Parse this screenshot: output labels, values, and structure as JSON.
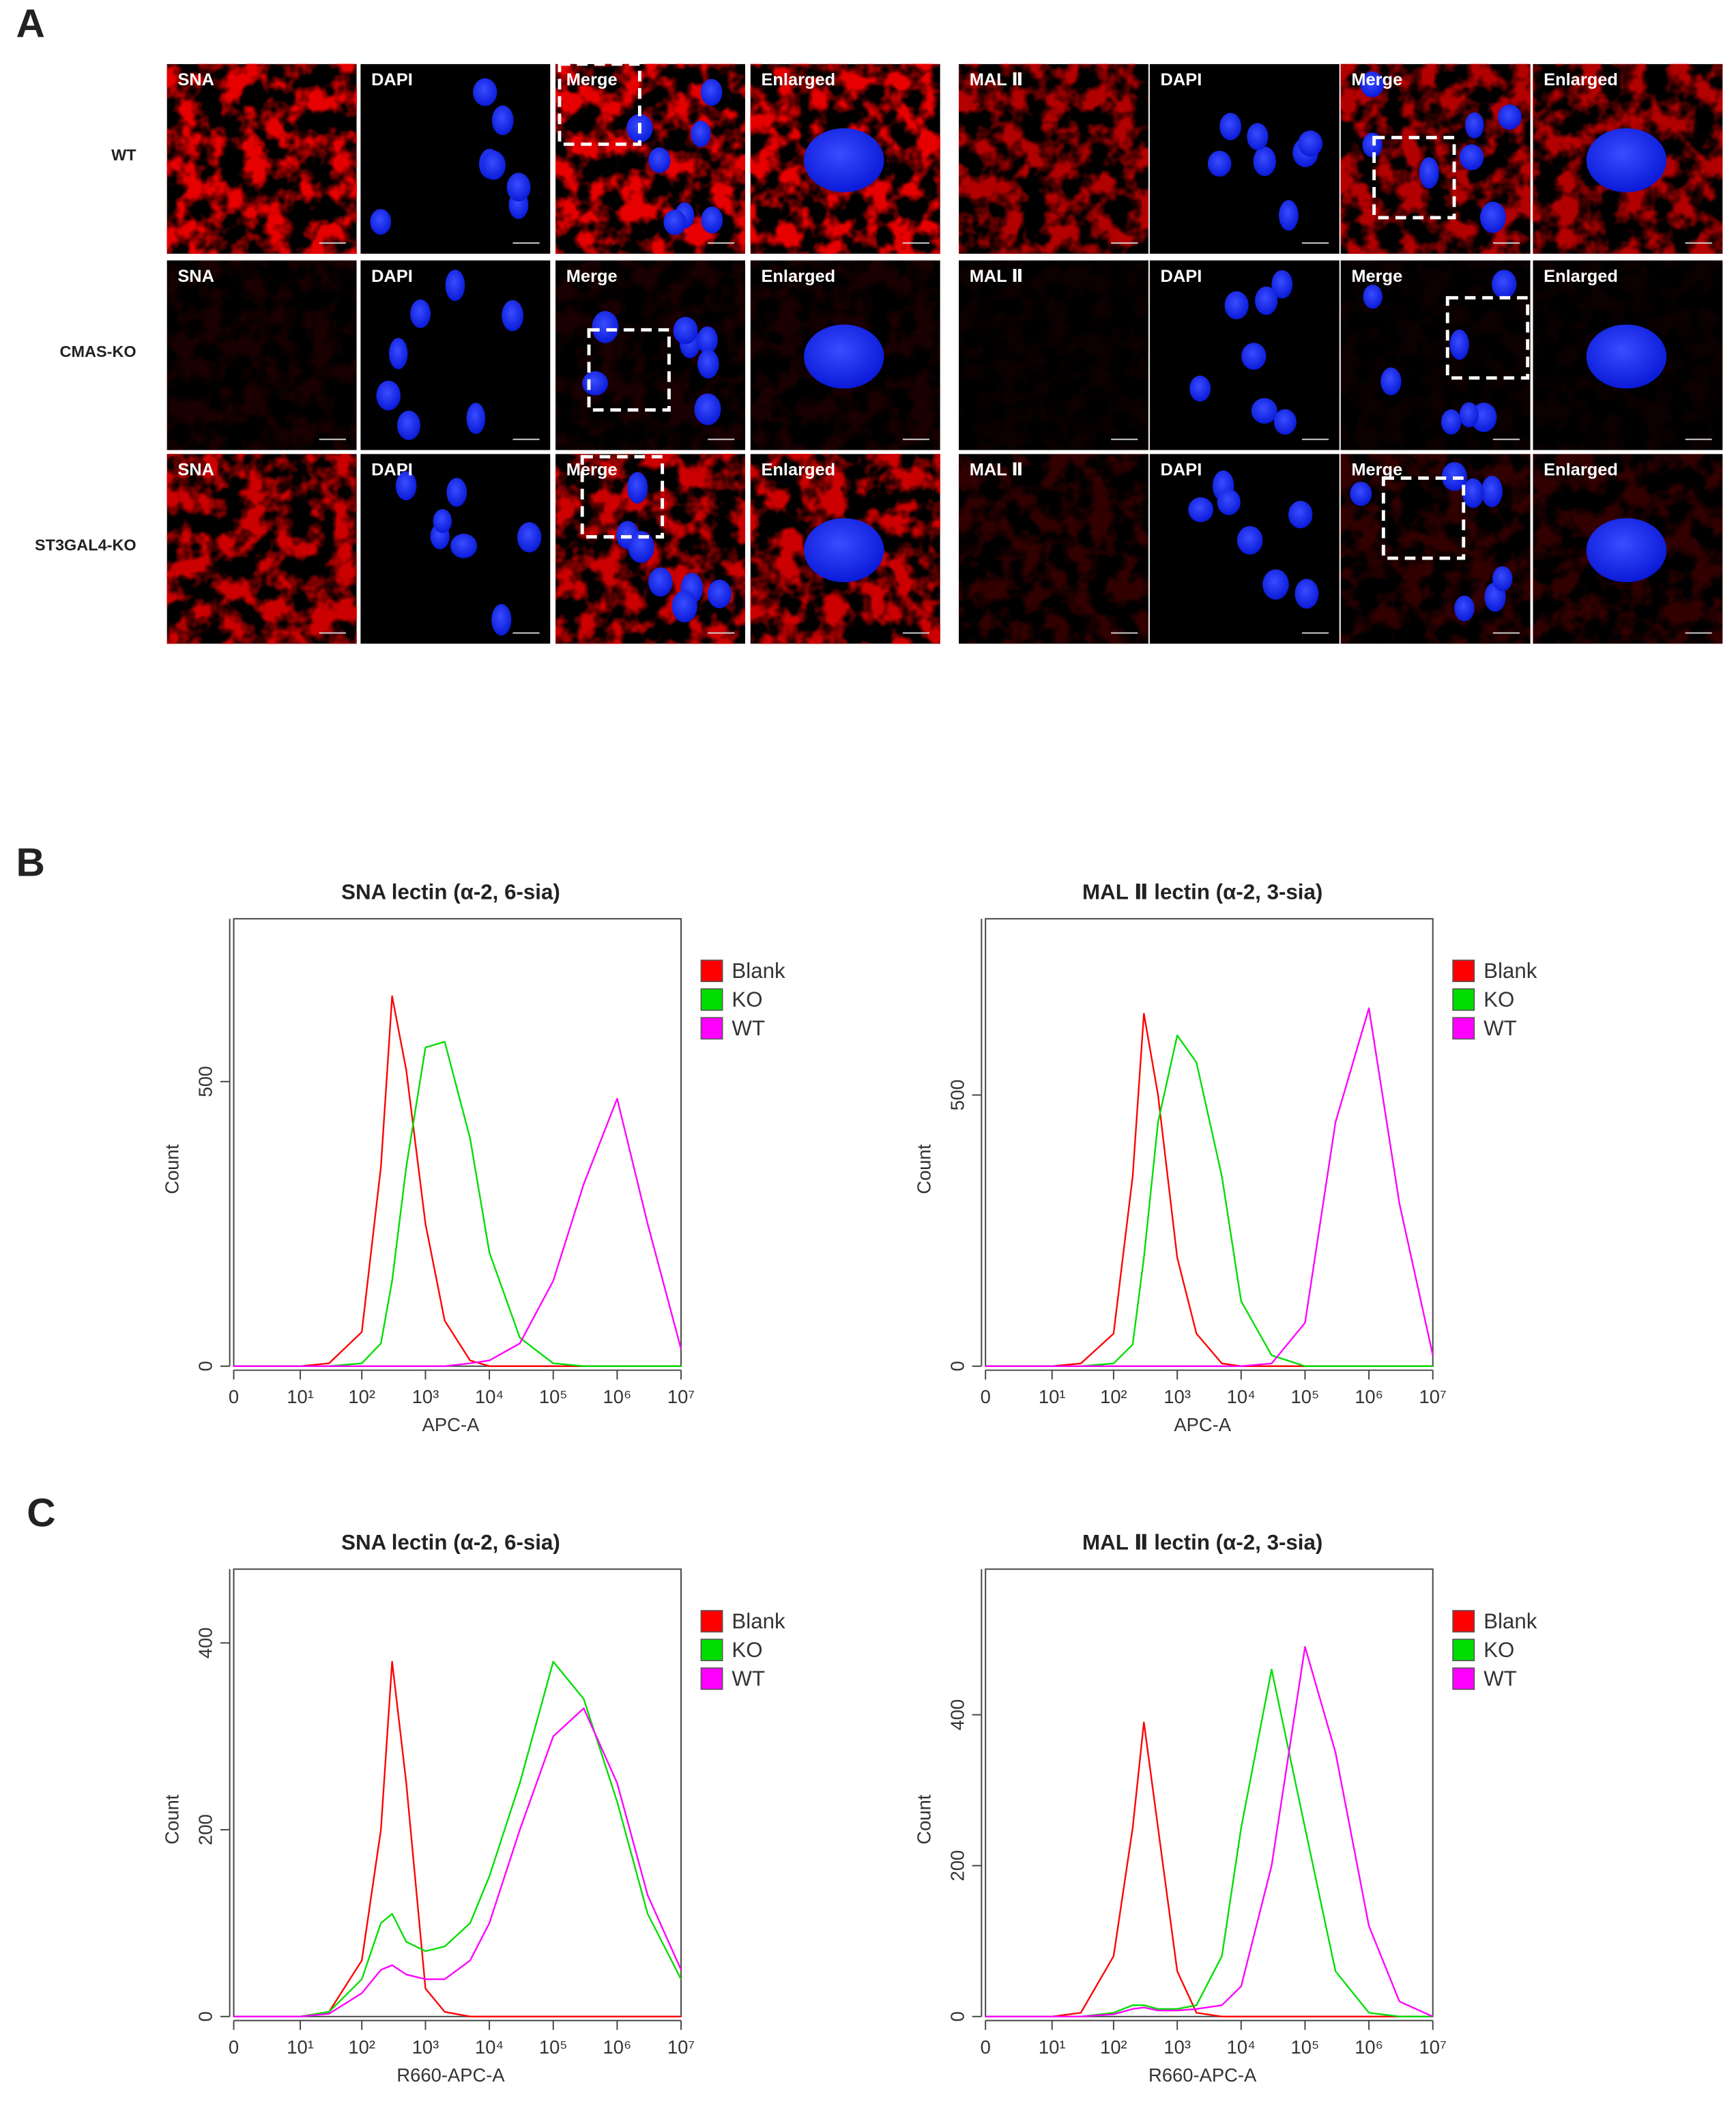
{
  "panel_labels": [
    "A",
    "B",
    "C"
  ],
  "panel_a": {
    "row_labels": [
      "WT",
      "CMAS-KO",
      "ST3GAL4-KO"
    ],
    "groups": [
      {
        "columns": [
          "SNA",
          "DAPI",
          "Merge",
          "Enlarged"
        ]
      },
      {
        "columns": [
          "MAL Ⅱ",
          "DAPI",
          "Merge",
          "Enlarged"
        ]
      }
    ]
  },
  "chart_data": [
    {
      "type": "line",
      "title": "SNA lectin (α-2, 6-sia)",
      "xlabel": "APC-A",
      "ylabel": "Count",
      "xscale": "symlog",
      "legend": "right",
      "x": [
        0,
        10,
        30,
        100,
        200,
        300,
        500,
        1000,
        2000,
        5000,
        10000,
        30000,
        100000,
        300000,
        1000000,
        3000000,
        10000000
      ],
      "xlim": [
        0,
        10000000
      ],
      "xticks": [
        0,
        {
          "value": 10,
          "label": "10¹"
        },
        {
          "value": 100,
          "label": "10²"
        },
        {
          "value": 1000,
          "label": "10³"
        },
        {
          "value": 10000,
          "label": "10⁴"
        },
        {
          "value": 100000,
          "label": "10⁵"
        },
        {
          "value": 1000000,
          "label": "10⁶"
        },
        {
          "value": 10000000,
          "label": "10⁷"
        }
      ],
      "ylim": [
        0,
        786
      ],
      "yticks": [
        0,
        500
      ],
      "series": [
        {
          "name": "Blank",
          "color": "#ff0000",
          "values": [
            0,
            0,
            5,
            60,
            350,
            650,
            520,
            250,
            80,
            10,
            0,
            0,
            0,
            0,
            0,
            0,
            0
          ]
        },
        {
          "name": "KO",
          "color": "#00dd00",
          "values": [
            0,
            0,
            0,
            5,
            40,
            150,
            350,
            560,
            570,
            400,
            200,
            50,
            5,
            0,
            0,
            0,
            0
          ]
        },
        {
          "name": "WT",
          "color": "#ff00ff",
          "values": [
            0,
            0,
            0,
            0,
            0,
            0,
            0,
            0,
            0,
            5,
            10,
            40,
            150,
            320,
            470,
            250,
            30
          ]
        }
      ]
    },
    {
      "type": "line",
      "title": "MAL Ⅱ lectin (α-2, 3-sia)",
      "xlabel": "APC-A",
      "ylabel": "Count",
      "xscale": "symlog",
      "legend": "right",
      "x": [
        0,
        10,
        30,
        100,
        200,
        300,
        500,
        1000,
        2000,
        5000,
        10000,
        30000,
        100000,
        300000,
        1000000,
        3000000,
        10000000
      ],
      "xlim": [
        0,
        10000000
      ],
      "xticks": [
        0,
        {
          "value": 10,
          "label": "10¹"
        },
        {
          "value": 100,
          "label": "10²"
        },
        {
          "value": 1000,
          "label": "10³"
        },
        {
          "value": 10000,
          "label": "10⁴"
        },
        {
          "value": 100000,
          "label": "10⁵"
        },
        {
          "value": 1000000,
          "label": "10⁶"
        },
        {
          "value": 10000000,
          "label": "10⁷"
        }
      ],
      "ylim": [
        0,
        825
      ],
      "yticks": [
        0,
        500
      ],
      "series": [
        {
          "name": "Blank",
          "color": "#ff0000",
          "values": [
            0,
            0,
            5,
            60,
            350,
            650,
            500,
            200,
            60,
            5,
            0,
            0,
            0,
            0,
            0,
            0,
            0
          ]
        },
        {
          "name": "KO",
          "color": "#00dd00",
          "values": [
            0,
            0,
            0,
            5,
            40,
            200,
            450,
            610,
            560,
            350,
            120,
            20,
            0,
            0,
            0,
            0,
            0
          ]
        },
        {
          "name": "WT",
          "color": "#ff00ff",
          "values": [
            0,
            0,
            0,
            0,
            0,
            0,
            0,
            0,
            0,
            0,
            0,
            5,
            80,
            450,
            660,
            300,
            20
          ]
        }
      ]
    },
    {
      "type": "line",
      "title": "SNA lectin (α-2, 6-sia)",
      "xlabel": "R660-APC-A",
      "ylabel": "Count",
      "xscale": "symlog",
      "legend": "right",
      "x": [
        0,
        10,
        30,
        100,
        200,
        300,
        500,
        1000,
        2000,
        5000,
        10000,
        30000,
        100000,
        300000,
        1000000,
        3000000,
        10000000
      ],
      "xlim": [
        0,
        10000000
      ],
      "xticks": [
        0,
        {
          "value": 10,
          "label": "10¹"
        },
        {
          "value": 100,
          "label": "10²"
        },
        {
          "value": 1000,
          "label": "10³"
        },
        {
          "value": 10000,
          "label": "10⁴"
        },
        {
          "value": 100000,
          "label": "10⁵"
        },
        {
          "value": 1000000,
          "label": "10⁶"
        },
        {
          "value": 10000000,
          "label": "10⁷"
        }
      ],
      "ylim": [
        0,
        479
      ],
      "yticks": [
        0,
        200,
        400
      ],
      "series": [
        {
          "name": "Blank",
          "color": "#ff0000",
          "values": [
            0,
            0,
            5,
            60,
            200,
            380,
            250,
            30,
            5,
            0,
            0,
            0,
            0,
            0,
            0,
            0,
            0
          ]
        },
        {
          "name": "KO",
          "color": "#00dd00",
          "values": [
            0,
            0,
            5,
            40,
            100,
            110,
            80,
            70,
            75,
            100,
            150,
            250,
            380,
            340,
            230,
            110,
            40
          ]
        },
        {
          "name": "WT",
          "color": "#ff00ff",
          "values": [
            0,
            0,
            3,
            25,
            50,
            55,
            45,
            40,
            40,
            60,
            100,
            200,
            300,
            330,
            250,
            130,
            50
          ]
        }
      ]
    },
    {
      "type": "line",
      "title": "MAL Ⅱ lectin (α-2, 3-sia)",
      "xlabel": "R660-APC-A",
      "ylabel": "Count",
      "xscale": "symlog",
      "legend": "right",
      "x": [
        0,
        10,
        30,
        100,
        200,
        300,
        500,
        1000,
        2000,
        5000,
        10000,
        30000,
        100000,
        300000,
        1000000,
        3000000,
        10000000
      ],
      "xlim": [
        0,
        10000000
      ],
      "xticks": [
        0,
        {
          "value": 10,
          "label": "10¹"
        },
        {
          "value": 100,
          "label": "10²"
        },
        {
          "value": 1000,
          "label": "10³"
        },
        {
          "value": 10000,
          "label": "10⁴"
        },
        {
          "value": 100000,
          "label": "10⁵"
        },
        {
          "value": 1000000,
          "label": "10⁶"
        },
        {
          "value": 10000000,
          "label": "10⁷"
        }
      ],
      "ylim": [
        0,
        593
      ],
      "yticks": [
        0,
        200,
        400
      ],
      "series": [
        {
          "name": "Blank",
          "color": "#ff0000",
          "values": [
            0,
            0,
            5,
            80,
            250,
            390,
            250,
            60,
            5,
            0,
            0,
            0,
            0,
            0,
            0,
            0,
            0
          ]
        },
        {
          "name": "KO",
          "color": "#00dd00",
          "values": [
            0,
            0,
            0,
            5,
            15,
            15,
            10,
            10,
            15,
            80,
            250,
            460,
            250,
            60,
            5,
            0,
            0
          ]
        },
        {
          "name": "WT",
          "color": "#ff00ff",
          "values": [
            0,
            0,
            0,
            3,
            10,
            12,
            8,
            8,
            10,
            15,
            40,
            200,
            490,
            350,
            120,
            20,
            0
          ]
        }
      ]
    }
  ]
}
